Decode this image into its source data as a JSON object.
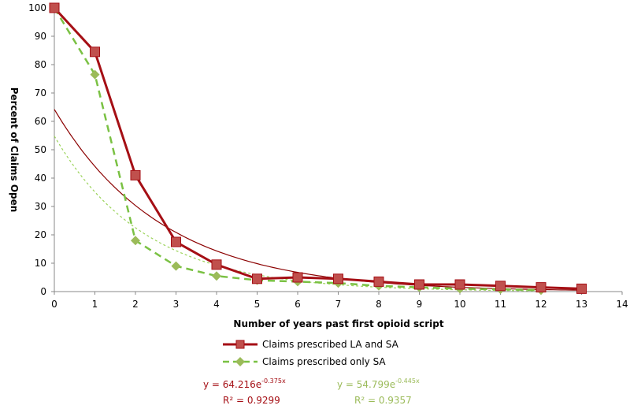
{
  "chart_data": {
    "type": "line",
    "title": "",
    "xlabel": "Number of years past first opioid script",
    "ylabel": "Percent of Claims Open",
    "xlim": [
      0,
      14
    ],
    "ylim": [
      0,
      100
    ],
    "x_ticks": [
      "0",
      "1",
      "2",
      "3",
      "4",
      "5",
      "6",
      "7",
      "8",
      "9",
      "10",
      "11",
      "12",
      "13",
      "14"
    ],
    "y_ticks": [
      "0",
      "10",
      "20",
      "30",
      "40",
      "50",
      "60",
      "70",
      "80",
      "90",
      "100"
    ],
    "grid": false,
    "legend_position": "bottom",
    "series": [
      {
        "name": "Claims prescribed LA and SA",
        "color": "#c0504d",
        "line_color": "#a50f15",
        "marker": "square",
        "x": [
          0,
          1,
          2,
          3,
          4,
          5,
          6,
          7,
          8,
          9,
          10,
          11,
          12,
          13
        ],
        "values": [
          100,
          84.5,
          41,
          17.5,
          9.5,
          4.5,
          5,
          4.5,
          3.5,
          2.5,
          2.5,
          2,
          1.5,
          1
        ],
        "trend": {
          "a": 64.216,
          "b": -0.375,
          "equation": "y = 64.216e",
          "exponent": "-0.375x",
          "r2": "R² = 0.9299"
        }
      },
      {
        "name": "Claims prescribed only SA",
        "color": "#9bbb59",
        "line_color": "#7ac143",
        "marker": "diamond",
        "x": [
          0,
          1,
          2,
          3,
          4,
          5,
          6,
          7,
          8,
          9,
          10,
          11,
          12
        ],
        "values": [
          100,
          76.5,
          18,
          9,
          5.5,
          4,
          3.5,
          3,
          2,
          1.5,
          1,
          0.8,
          0.5
        ],
        "trend": {
          "a": 54.799,
          "b": -0.445,
          "equation": "y = 54.799e",
          "exponent": "-0.445x",
          "r2": "R² = 0.9357"
        }
      }
    ]
  }
}
